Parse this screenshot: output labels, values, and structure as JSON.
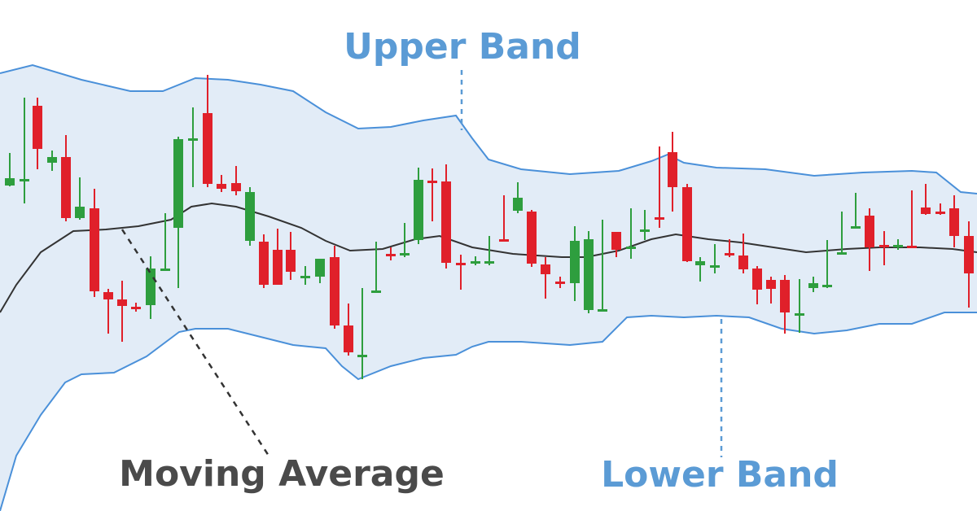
{
  "chart_data": {
    "type": "candlestick",
    "title": "",
    "xlabel": "",
    "ylabel": "",
    "ylim": [
      0,
      628
    ],
    "annotations": {
      "upper": "Upper Band",
      "lower": "Lower Band",
      "ma": "Moving Average"
    },
    "colors": {
      "band_fill": "#e2ecf7",
      "band_line": "#4a90d9",
      "ma_line": "#333333",
      "up": "#2e9e3e",
      "down": "#e0202a",
      "upper_label": "#5b9bd5",
      "lower_label": "#5b9bd5",
      "ma_label": "#4a4a4a"
    },
    "upper_band": [
      [
        0,
        90
      ],
      [
        40,
        80
      ],
      [
        100,
        98
      ],
      [
        160,
        112
      ],
      [
        200,
        112
      ],
      [
        240,
        96
      ],
      [
        280,
        98
      ],
      [
        320,
        104
      ],
      [
        360,
        112
      ],
      [
        400,
        138
      ],
      [
        440,
        158
      ],
      [
        480,
        156
      ],
      [
        520,
        148
      ],
      [
        560,
        142
      ],
      [
        580,
        170
      ],
      [
        600,
        196
      ],
      [
        640,
        208
      ],
      [
        700,
        214
      ],
      [
        760,
        210
      ],
      [
        800,
        198
      ],
      [
        820,
        190
      ],
      [
        840,
        200
      ],
      [
        880,
        206
      ],
      [
        940,
        208
      ],
      [
        1000,
        216
      ],
      [
        1060,
        212
      ],
      [
        1120,
        210
      ],
      [
        1150,
        212
      ],
      [
        1180,
        236
      ],
      [
        1200,
        238
      ]
    ],
    "lower_band": [
      [
        0,
        628
      ],
      [
        20,
        560
      ],
      [
        50,
        510
      ],
      [
        80,
        470
      ],
      [
        100,
        460
      ],
      [
        140,
        458
      ],
      [
        180,
        438
      ],
      [
        220,
        408
      ],
      [
        240,
        404
      ],
      [
        280,
        404
      ],
      [
        320,
        414
      ],
      [
        360,
        424
      ],
      [
        400,
        428
      ],
      [
        420,
        450
      ],
      [
        440,
        466
      ],
      [
        480,
        450
      ],
      [
        520,
        440
      ],
      [
        560,
        436
      ],
      [
        580,
        426
      ],
      [
        600,
        420
      ],
      [
        640,
        420
      ],
      [
        700,
        424
      ],
      [
        740,
        420
      ],
      [
        770,
        390
      ],
      [
        800,
        388
      ],
      [
        840,
        390
      ],
      [
        880,
        388
      ],
      [
        920,
        390
      ],
      [
        960,
        404
      ],
      [
        1000,
        410
      ],
      [
        1040,
        406
      ],
      [
        1080,
        398
      ],
      [
        1120,
        398
      ],
      [
        1160,
        384
      ],
      [
        1200,
        384
      ]
    ],
    "moving_average": [
      [
        0,
        384
      ],
      [
        20,
        350
      ],
      [
        50,
        310
      ],
      [
        90,
        284
      ],
      [
        130,
        282
      ],
      [
        170,
        278
      ],
      [
        210,
        270
      ],
      [
        235,
        254
      ],
      [
        260,
        250
      ],
      [
        290,
        254
      ],
      [
        330,
        266
      ],
      [
        370,
        280
      ],
      [
        400,
        296
      ],
      [
        430,
        308
      ],
      [
        470,
        306
      ],
      [
        510,
        294
      ],
      [
        540,
        290
      ],
      [
        580,
        304
      ],
      [
        630,
        312
      ],
      [
        690,
        316
      ],
      [
        720,
        316
      ],
      [
        760,
        308
      ],
      [
        800,
        294
      ],
      [
        830,
        288
      ],
      [
        870,
        294
      ],
      [
        910,
        298
      ],
      [
        950,
        304
      ],
      [
        990,
        310
      ],
      [
        1040,
        306
      ],
      [
        1080,
        304
      ],
      [
        1130,
        304
      ],
      [
        1170,
        306
      ],
      [
        1200,
        310
      ]
    ],
    "candles": [
      [
        12,
        188,
        229,
        219,
        228
      ],
      [
        30,
        120,
        250,
        220,
        130
      ],
      [
        46,
        120,
        208,
        130,
        183
      ],
      [
        64,
        185,
        210,
        193,
        200
      ],
      [
        81,
        166,
        272,
        193,
        268
      ],
      [
        98,
        218,
        270,
        254,
        268
      ],
      [
        116,
        232,
        365,
        256,
        358
      ],
      [
        133,
        355,
        410,
        359,
        368
      ],
      [
        150,
        345,
        420,
        368,
        376
      ],
      [
        167,
        372,
        383,
        377,
        375
      ],
      [
        185,
        315,
        392,
        330,
        375
      ],
      [
        203,
        262,
        332,
        330,
        280
      ],
      [
        219,
        168,
        354,
        171,
        280
      ],
      [
        237,
        132,
        230,
        170,
        137
      ],
      [
        255,
        92,
        230,
        139,
        226
      ],
      [
        272,
        215,
        236,
        226,
        232
      ],
      [
        290,
        204,
        240,
        225,
        235
      ],
      [
        307,
        230,
        302,
        236,
        296
      ],
      [
        324,
        288,
        354,
        297,
        350
      ],
      [
        341,
        281,
        350,
        307,
        350
      ],
      [
        357,
        285,
        344,
        307,
        334
      ],
      [
        375,
        327,
        350,
        339,
        341
      ],
      [
        393,
        318,
        348,
        318,
        340
      ],
      [
        411,
        302,
        404,
        316,
        400
      ],
      [
        428,
        373,
        437,
        400,
        433
      ],
      [
        445,
        354,
        466,
        436,
        357
      ],
      [
        462,
        297,
        360,
        357,
        312
      ],
      [
        480,
        304,
        320,
        312,
        313
      ],
      [
        497,
        274,
        316,
        311,
        297
      ],
      [
        514,
        206,
        300,
        221,
        295
      ],
      [
        531,
        207,
        272,
        222,
        223
      ],
      [
        548,
        202,
        330,
        223,
        323
      ],
      [
        566,
        313,
        356,
        323,
        325
      ],
      [
        584,
        315,
        326,
        321,
        322
      ],
      [
        601,
        290,
        326,
        321,
        294
      ],
      [
        619,
        240,
        296,
        294,
        243
      ],
      [
        636,
        224,
        262,
        243,
        259
      ],
      [
        653,
        258,
        328,
        260,
        324
      ],
      [
        670,
        316,
        367,
        325,
        337
      ],
      [
        688,
        340,
        354,
        346,
        349
      ],
      [
        706,
        278,
        370,
        296,
        348
      ],
      [
        723,
        284,
        385,
        294,
        381
      ],
      [
        740,
        270,
        382,
        380,
        285
      ],
      [
        757,
        285,
        316,
        285,
        307
      ],
      [
        775,
        256,
        318,
        303,
        282
      ],
      [
        792,
        258,
        295,
        282,
        267
      ],
      [
        810,
        180,
        280,
        267,
        187
      ],
      [
        826,
        162,
        260,
        187,
        230
      ],
      [
        844,
        226,
        322,
        230,
        321
      ],
      [
        860,
        316,
        346,
        321,
        326
      ],
      [
        878,
        300,
        336,
        326,
        311
      ],
      [
        896,
        294,
        316,
        311,
        310
      ],
      [
        913,
        287,
        336,
        314,
        331
      ],
      [
        930,
        327,
        374,
        330,
        356
      ],
      [
        947,
        340,
        373,
        344,
        355
      ],
      [
        964,
        338,
        410,
        344,
        384
      ],
      [
        982,
        343,
        409,
        385,
        348
      ],
      [
        999,
        340,
        359,
        348,
        354
      ],
      [
        1016,
        295,
        354,
        350,
        312
      ],
      [
        1034,
        260,
        310,
        310,
        278
      ],
      [
        1051,
        237,
        278,
        278,
        265
      ],
      [
        1068,
        256,
        333,
        265,
        304
      ],
      [
        1086,
        284,
        326,
        301,
        302
      ],
      [
        1103,
        294,
        307,
        301,
        303
      ],
      [
        1120,
        234,
        304,
        302,
        255
      ],
      [
        1137,
        226,
        264,
        255,
        263
      ],
      [
        1155,
        250,
        264,
        260,
        258
      ],
      [
        1172,
        240,
        304,
        256,
        290
      ],
      [
        1190,
        272,
        378,
        290,
        336
      ]
    ]
  }
}
